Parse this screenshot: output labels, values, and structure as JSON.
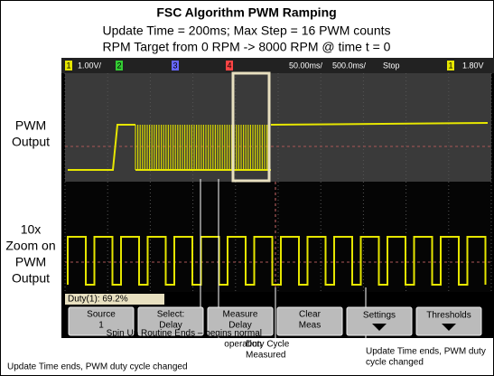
{
  "header": {
    "title": "FSC Algorithm PWM Ramping",
    "lines": [
      "Update Time = 200ms; Max Step = 16 PWM counts",
      "RPM Target from 0 RPM -> 8000 RPM @ time t = 0"
    ]
  },
  "scope": {
    "channels": [
      "1",
      "2",
      "3",
      "4"
    ],
    "ch1_scale": "1.00V/",
    "timebase": "50.00ms/",
    "zoom_timebase": "500.0ms/",
    "run_state": "Stop",
    "trigger_channel": "1",
    "trigger_level": "1.80V",
    "measurement": "Duty(1): 69.2%",
    "softkeys": [
      [
        "Source",
        "1"
      ],
      [
        "Select:",
        "Delay"
      ],
      [
        "Measure",
        "Delay"
      ],
      [
        "Clear",
        "Meas"
      ],
      [
        "Settings"
      ],
      [
        "Thresholds"
      ]
    ]
  },
  "labels": [
    [
      "PWM",
      "Output"
    ],
    [
      "10x",
      "Zoom on",
      "PWM",
      "Output"
    ]
  ],
  "annotations": [
    [
      "Spin Up Routine Ends – begins normal",
      "operation"
    ],
    [
      "Update Time ends, PWM duty cycle changed"
    ],
    [
      "Duty Cycle",
      "Measured"
    ],
    [
      "Update Time ends, PWM duty",
      "cycle changed"
    ]
  ]
}
